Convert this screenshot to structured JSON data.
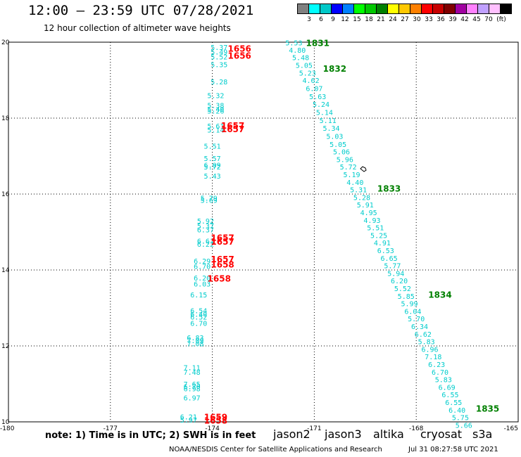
{
  "header": {
    "title": "12:00 – 23:59 UTC 07/28/2021",
    "subtitle": "12 hour collection of altimeter wave heights"
  },
  "legend": {
    "unit": "(ft)",
    "colors": [
      "#808080",
      "#00ffff",
      "#00c8c8",
      "#0000ff",
      "#0080ff",
      "#00ff00",
      "#00c800",
      "#008000",
      "#ffff00",
      "#ffc800",
      "#ff8000",
      "#ff0000",
      "#c80000",
      "#800000",
      "#a000a0",
      "#ff80ff",
      "#c0a0ff",
      "#ffc0ff",
      "#000000"
    ],
    "ticks": [
      "3",
      "6",
      "9",
      "12",
      "15",
      "18",
      "21",
      "24",
      "27",
      "30",
      "33",
      "36",
      "39",
      "42",
      "45",
      "70"
    ]
  },
  "chart_data": {
    "type": "scatter",
    "xlim": [
      -180,
      -165
    ],
    "ylim": [
      10,
      20
    ],
    "xticks": [
      "-180",
      "-177",
      "-174",
      "-171",
      "-168",
      "-165"
    ],
    "yticks": [
      "10",
      "12",
      "14",
      "16",
      "18",
      "20"
    ],
    "grid": true,
    "series": [
      {
        "name": "jason3",
        "color": "#00cccc",
        "points": [
          [
            -171.6,
            19.97,
            "5.53"
          ],
          [
            -171.5,
            19.78,
            "4.80"
          ],
          [
            -171.4,
            19.58,
            "5.48"
          ],
          [
            -171.3,
            19.38,
            "5.05"
          ],
          [
            -171.2,
            19.18,
            "5.23"
          ],
          [
            -171.1,
            18.98,
            "4.62"
          ],
          [
            -171.0,
            18.77,
            "6.07"
          ],
          [
            -170.9,
            18.56,
            "5.63"
          ],
          [
            -170.8,
            18.35,
            "5.24"
          ],
          [
            -170.7,
            18.14,
            "5.14"
          ],
          [
            -170.6,
            17.93,
            "5.11"
          ],
          [
            -170.5,
            17.72,
            "5.34"
          ],
          [
            -170.4,
            17.51,
            "5.03"
          ],
          [
            -170.3,
            17.3,
            "5.05"
          ],
          [
            -170.2,
            17.1,
            "5.06"
          ],
          [
            -170.1,
            16.9,
            "5.96"
          ],
          [
            -170.0,
            16.7,
            "5.72"
          ],
          [
            -169.9,
            16.5,
            "5.19"
          ],
          [
            -169.8,
            16.3,
            "4.40"
          ],
          [
            -169.7,
            16.1,
            "5.31"
          ],
          [
            -169.6,
            15.9,
            "5.28"
          ],
          [
            -169.5,
            15.7,
            "5.91"
          ],
          [
            -169.4,
            15.5,
            "4.95"
          ],
          [
            -169.3,
            15.3,
            "4.93"
          ],
          [
            -169.2,
            15.1,
            "5.51"
          ],
          [
            -169.1,
            14.9,
            "5.25"
          ],
          [
            -169.0,
            14.7,
            "4.91"
          ],
          [
            -168.9,
            14.5,
            "6.53"
          ],
          [
            -168.8,
            14.3,
            "6.65"
          ],
          [
            -168.7,
            14.1,
            "5.77"
          ],
          [
            -168.6,
            13.9,
            "5.94"
          ],
          [
            -168.5,
            13.7,
            "6.20"
          ],
          [
            -168.4,
            13.5,
            "5.52"
          ],
          [
            -168.3,
            13.3,
            "5.85"
          ],
          [
            -168.2,
            13.1,
            "5.99"
          ],
          [
            -168.1,
            12.9,
            "6.04"
          ],
          [
            -168.0,
            12.7,
            "5.70"
          ],
          [
            -167.9,
            12.5,
            "6.34"
          ],
          [
            -167.8,
            12.3,
            "6.62"
          ],
          [
            -167.7,
            12.1,
            "5.83"
          ],
          [
            -167.6,
            11.9,
            "6.96"
          ],
          [
            -167.5,
            11.7,
            "7.18"
          ],
          [
            -167.4,
            11.5,
            "6.23"
          ],
          [
            -167.3,
            11.3,
            "6.70"
          ],
          [
            -167.2,
            11.1,
            "5.83"
          ],
          [
            -167.1,
            10.9,
            "6.69"
          ],
          [
            -167.0,
            10.7,
            "6.55"
          ],
          [
            -166.9,
            10.5,
            "6.55"
          ],
          [
            -166.8,
            10.3,
            "6.40"
          ],
          [
            -166.7,
            10.1,
            "5.75"
          ],
          [
            -166.6,
            9.9,
            "5.66"
          ],
          [
            -173.8,
            19.85,
            "5.37"
          ],
          [
            -173.8,
            19.73,
            "5.49"
          ],
          [
            -173.8,
            19.6,
            "5.52"
          ],
          [
            -173.8,
            19.4,
            "5.35"
          ],
          [
            -173.8,
            18.94,
            "5.28"
          ],
          [
            -173.9,
            18.58,
            "5.32"
          ],
          [
            -173.9,
            18.32,
            "5.38"
          ],
          [
            -173.9,
            18.22,
            "5.40"
          ],
          [
            -173.9,
            18.18,
            "5.26"
          ],
          [
            -173.9,
            17.78,
            "5.61"
          ],
          [
            -173.9,
            17.68,
            "5.14"
          ],
          [
            -174.0,
            17.25,
            "5.51"
          ],
          [
            -174.0,
            16.93,
            "5.57"
          ],
          [
            -174.0,
            16.75,
            "6.09"
          ],
          [
            -174.0,
            16.7,
            "5.72"
          ],
          [
            -174.0,
            16.46,
            "5.43"
          ],
          [
            -174.1,
            15.88,
            "5.79"
          ],
          [
            -174.1,
            15.82,
            "5.69"
          ],
          [
            -174.2,
            15.28,
            "5.92"
          ],
          [
            -174.2,
            15.15,
            "5.37"
          ],
          [
            -174.2,
            15.05,
            "6.37"
          ],
          [
            -174.2,
            14.75,
            "6.61"
          ],
          [
            -174.2,
            14.67,
            "6.22"
          ],
          [
            -174.3,
            14.22,
            "6.29"
          ],
          [
            -174.3,
            14.08,
            "6.70"
          ],
          [
            -174.3,
            13.78,
            "6.20"
          ],
          [
            -174.3,
            13.62,
            "6.03"
          ],
          [
            -174.4,
            13.33,
            "6.15"
          ],
          [
            -174.4,
            12.92,
            "6.54"
          ],
          [
            -174.4,
            12.82,
            "6.40"
          ],
          [
            -174.4,
            12.75,
            "6.52"
          ],
          [
            -174.4,
            12.58,
            "6.70"
          ],
          [
            -174.5,
            12.2,
            "6.83"
          ],
          [
            -174.5,
            12.13,
            "7.09"
          ],
          [
            -174.5,
            12.05,
            "7.08"
          ],
          [
            -174.6,
            11.42,
            "7.11"
          ],
          [
            -174.6,
            11.3,
            "7.48"
          ],
          [
            -174.6,
            10.98,
            "7.65"
          ],
          [
            -174.6,
            10.92,
            "6.70"
          ],
          [
            -174.6,
            10.86,
            "6.98"
          ],
          [
            -174.6,
            10.62,
            "6.97"
          ],
          [
            -174.7,
            10.12,
            "6.21"
          ],
          [
            -174.7,
            10.04,
            "5.97"
          ]
        ]
      }
    ],
    "time_labels": [
      {
        "x": -170.9,
        "y": 19.97,
        "text": "1831",
        "color": "#008000"
      },
      {
        "x": -170.4,
        "y": 19.3,
        "text": "1832",
        "color": "#008000"
      },
      {
        "x": -168.8,
        "y": 16.14,
        "text": "1833",
        "color": "#008000"
      },
      {
        "x": -167.3,
        "y": 13.34,
        "text": "1834",
        "color": "#008000"
      },
      {
        "x": -165.9,
        "y": 10.34,
        "text": "1835",
        "color": "#008000"
      },
      {
        "x": -173.2,
        "y": 19.82,
        "text": "1656",
        "color": "#ff0000"
      },
      {
        "x": -173.2,
        "y": 19.64,
        "text": "1656",
        "color": "#ff0000"
      },
      {
        "x": -173.4,
        "y": 17.8,
        "text": "1657",
        "color": "#ff0000"
      },
      {
        "x": -173.4,
        "y": 17.7,
        "text": "1657",
        "color": "#ff0000"
      },
      {
        "x": -173.7,
        "y": 14.84,
        "text": "1657",
        "color": "#ff0000"
      },
      {
        "x": -173.7,
        "y": 14.74,
        "text": "1657",
        "color": "#ff0000"
      },
      {
        "x": -173.7,
        "y": 14.28,
        "text": "1657",
        "color": "#ff0000"
      },
      {
        "x": -173.7,
        "y": 14.14,
        "text": "1658",
        "color": "#ff0000"
      },
      {
        "x": -173.8,
        "y": 13.77,
        "text": "1658",
        "color": "#ff0000"
      },
      {
        "x": -173.9,
        "y": 10.12,
        "text": "1659",
        "color": "#ff0000"
      },
      {
        "x": -173.9,
        "y": 10.03,
        "text": "1658",
        "color": "#ff0000"
      }
    ]
  },
  "note": "note: 1) Time is in UTC; 2) SWH is in feet",
  "satellites": [
    {
      "label": "jason2",
      "color": "#0000ff"
    },
    {
      "label": "jason3",
      "color": "#008000"
    },
    {
      "label": "altika",
      "color": "#ff8c00"
    },
    {
      "label": "cryosat",
      "color": "#ff0000"
    },
    {
      "label": "s3a",
      "color": "#800000"
    }
  ],
  "credit": "NOAA/NESDIS Center for Satellite Applications and Research",
  "timestamp": "Jul 31 08:27:58 UTC 2021"
}
